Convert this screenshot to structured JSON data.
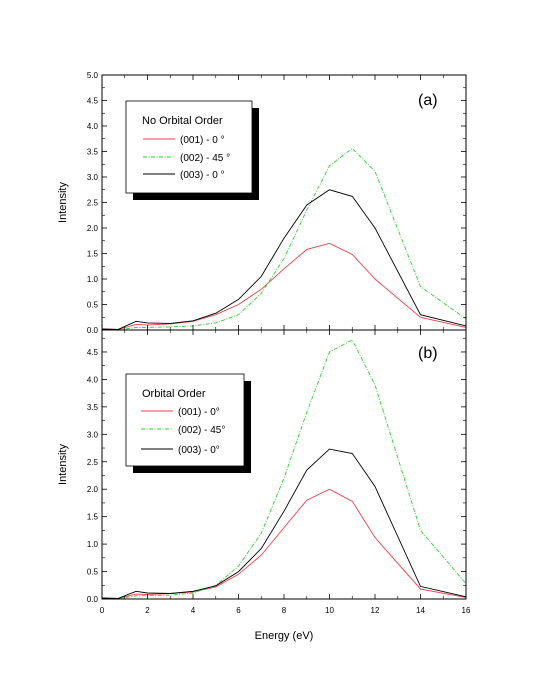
{
  "chart_data": [
    {
      "type": "line",
      "panel_label": "(a)",
      "xlabel": "",
      "ylabel": "Intensity",
      "xlim": [
        0,
        16
      ],
      "ylim": [
        0,
        5.0
      ],
      "y_ticks": [
        "0.0",
        "0.5",
        "1.0",
        "1.5",
        "2.0",
        "2.5",
        "3.0",
        "3.5",
        "4.0",
        "4.5",
        "5.0"
      ],
      "y_tick_values": [
        0,
        0.5,
        1,
        1.5,
        2,
        2.5,
        3,
        3.5,
        4,
        4.5,
        5
      ],
      "legend": {
        "title": "No Orbital Order",
        "placement": "top-left"
      },
      "series": [
        {
          "name": "(001) - 0 °",
          "color": "#e8414b",
          "dash": "solid",
          "x": [
            0,
            0.7,
            1.5,
            2,
            3,
            4,
            5,
            6,
            7,
            8,
            9,
            10,
            11,
            12,
            14,
            16
          ],
          "y": [
            0.02,
            0.01,
            0.11,
            0.1,
            0.12,
            0.17,
            0.3,
            0.5,
            0.8,
            1.2,
            1.58,
            1.7,
            1.48,
            1.0,
            0.25,
            0.05
          ]
        },
        {
          "name": "(002) - 45 °",
          "color": "#33cc33",
          "dash": "dashdot",
          "x": [
            0,
            0.7,
            1.5,
            2,
            3,
            4,
            5,
            6,
            7,
            8,
            9,
            10,
            11,
            12,
            14,
            16
          ],
          "y": [
            0.01,
            0.0,
            0.05,
            0.05,
            0.06,
            0.08,
            0.14,
            0.3,
            0.72,
            1.4,
            2.35,
            3.22,
            3.56,
            3.11,
            0.85,
            0.22
          ]
        },
        {
          "name": "(003) - 0 °",
          "color": "#000000",
          "dash": "solid",
          "x": [
            0,
            0.7,
            1.5,
            2,
            3,
            4,
            5,
            6,
            7,
            8,
            9,
            10,
            11,
            12,
            14,
            16
          ],
          "y": [
            0.02,
            0.01,
            0.17,
            0.14,
            0.13,
            0.18,
            0.33,
            0.6,
            1.05,
            1.8,
            2.45,
            2.75,
            2.62,
            2.0,
            0.3,
            0.08
          ]
        }
      ]
    },
    {
      "type": "line",
      "panel_label": "(b)",
      "xlabel": "Energy (eV)",
      "ylabel": "Intensity",
      "xlim": [
        0,
        16
      ],
      "ylim": [
        0,
        4.9
      ],
      "x_ticks": [
        "0",
        "2",
        "4",
        "6",
        "8",
        "10",
        "12",
        "14",
        "16"
      ],
      "x_tick_values": [
        0,
        2,
        4,
        6,
        8,
        10,
        12,
        14,
        16
      ],
      "y_ticks": [
        "0.0",
        "0.5",
        "1.0",
        "1.5",
        "2.0",
        "2.5",
        "3.0",
        "3.5",
        "4.0",
        "4.5"
      ],
      "y_tick_values": [
        0,
        0.5,
        1,
        1.5,
        2,
        2.5,
        3,
        3.5,
        4,
        4.5
      ],
      "legend": {
        "title": "Orbital Order",
        "placement": "top-left"
      },
      "series": [
        {
          "name": "(001) - 0°",
          "color": "#e8414b",
          "dash": "solid",
          "x": [
            0,
            0.7,
            1.5,
            2,
            3,
            4,
            5,
            6,
            7,
            8,
            9,
            10,
            11,
            12,
            14,
            16
          ],
          "y": [
            0.02,
            0.01,
            0.09,
            0.08,
            0.1,
            0.13,
            0.22,
            0.45,
            0.8,
            1.3,
            1.8,
            2.0,
            1.78,
            1.12,
            0.18,
            0.03
          ]
        },
        {
          "name": "(002) - 45°",
          "color": "#33cc33",
          "dash": "dashdot",
          "x": [
            0,
            0.7,
            1.5,
            2,
            3,
            4,
            5,
            6,
            7,
            8,
            9,
            10,
            11,
            12,
            14,
            16
          ],
          "y": [
            0.01,
            0.0,
            0.06,
            0.06,
            0.07,
            0.11,
            0.25,
            0.6,
            1.2,
            2.2,
            3.4,
            4.5,
            4.72,
            3.9,
            1.25,
            0.28
          ]
        },
        {
          "name": "(003) - 0°",
          "color": "#000000",
          "dash": "solid",
          "x": [
            0,
            0.7,
            1.5,
            2,
            3,
            4,
            5,
            6,
            7,
            8,
            9,
            10,
            11,
            12,
            14,
            16
          ],
          "y": [
            0.02,
            0.01,
            0.14,
            0.11,
            0.1,
            0.14,
            0.24,
            0.5,
            0.92,
            1.6,
            2.35,
            2.73,
            2.65,
            2.05,
            0.23,
            0.04
          ]
        }
      ]
    }
  ]
}
